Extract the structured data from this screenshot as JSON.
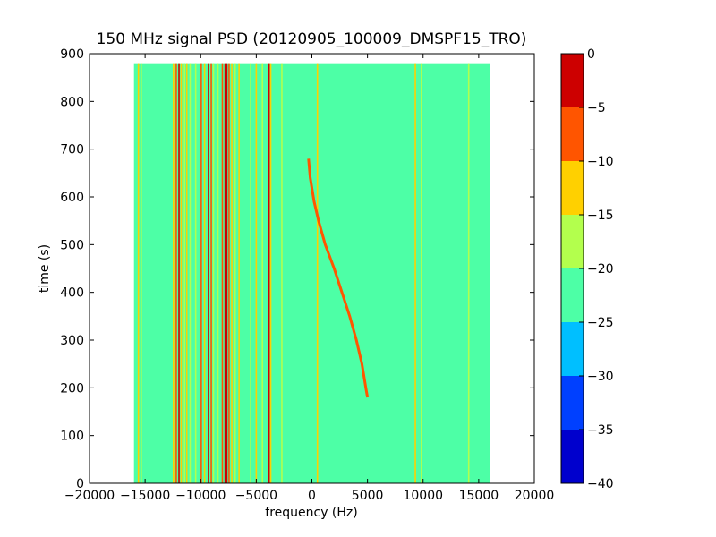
{
  "chart_data": {
    "type": "heatmap",
    "title": "150 MHz signal PSD (20120905_100009_DMSPF15_TRO)",
    "xlabel": "frequency (Hz)",
    "ylabel": "time (s)",
    "xlim": [
      -20000,
      20000
    ],
    "ylim": [
      0,
      900
    ],
    "x_ticks": [
      -20000,
      -15000,
      -10000,
      -5000,
      0,
      5000,
      10000,
      15000,
      20000
    ],
    "x_tick_labels": [
      "−20000",
      "−15000",
      "−10000",
      "−5000",
      "0",
      "5000",
      "10000",
      "15000",
      "20000"
    ],
    "y_ticks": [
      0,
      100,
      200,
      300,
      400,
      500,
      600,
      700,
      800,
      900
    ],
    "y_tick_labels": [
      "0",
      "100",
      "200",
      "300",
      "400",
      "500",
      "600",
      "700",
      "800",
      "900"
    ],
    "data_extent": {
      "x": [
        -16000,
        16000
      ],
      "y": [
        0,
        880
      ]
    },
    "background_level": -22.5,
    "colorbar": {
      "levels": [
        -40,
        -35,
        -30,
        -25,
        -20,
        -15,
        -10,
        -5,
        0
      ],
      "tick_labels": [
        "−40",
        "−35",
        "−30",
        "−25",
        "−20",
        "−15",
        "−10",
        "−5",
        "0"
      ],
      "colors": [
        "#0000cd",
        "#0040ff",
        "#00bfff",
        "#4dffa6",
        "#b3ff4d",
        "#ffd000",
        "#ff5500",
        "#cd0000"
      ]
    },
    "vertical_lines": [
      {
        "x": -15600,
        "level": -12
      },
      {
        "x": -15350,
        "level": -17
      },
      {
        "x": -12450,
        "level": -12
      },
      {
        "x": -12200,
        "level": -7
      },
      {
        "x": -11950,
        "level": -2
      },
      {
        "x": -11750,
        "level": -12
      },
      {
        "x": -11450,
        "level": -17
      },
      {
        "x": -11250,
        "level": -12
      },
      {
        "x": -10950,
        "level": -17
      },
      {
        "x": -10450,
        "level": -17
      },
      {
        "x": -9950,
        "level": -7
      },
      {
        "x": -9650,
        "level": -12
      },
      {
        "x": -9300,
        "level": -2
      },
      {
        "x": -9050,
        "level": -7
      },
      {
        "x": -8850,
        "level": -17
      },
      {
        "x": -8450,
        "level": -17
      },
      {
        "x": -8050,
        "level": -7
      },
      {
        "x": -7800,
        "level": -2
      },
      {
        "x": -7650,
        "level": -2
      },
      {
        "x": -7450,
        "level": -7
      },
      {
        "x": -7200,
        "level": -12
      },
      {
        "x": -6900,
        "level": -17
      },
      {
        "x": -6550,
        "level": -12
      },
      {
        "x": -5500,
        "level": -17
      },
      {
        "x": -5000,
        "level": -12
      },
      {
        "x": -4450,
        "level": -17
      },
      {
        "x": -3850,
        "level": -2
      },
      {
        "x": -3700,
        "level": -12
      },
      {
        "x": -2700,
        "level": -17
      },
      {
        "x": 500,
        "level": -12
      },
      {
        "x": 9300,
        "level": -12
      },
      {
        "x": 9850,
        "level": -17
      },
      {
        "x": 14100,
        "level": -17
      }
    ],
    "doppler_trace": {
      "level": -7,
      "points": [
        {
          "x": -300,
          "y": 680
        },
        {
          "x": -150,
          "y": 640
        },
        {
          "x": 200,
          "y": 590
        },
        {
          "x": 600,
          "y": 550
        },
        {
          "x": 1200,
          "y": 500
        },
        {
          "x": 2000,
          "y": 450
        },
        {
          "x": 2700,
          "y": 400
        },
        {
          "x": 3400,
          "y": 350
        },
        {
          "x": 4000,
          "y": 300
        },
        {
          "x": 4500,
          "y": 250
        },
        {
          "x": 4850,
          "y": 200
        },
        {
          "x": 5000,
          "y": 180
        }
      ]
    }
  }
}
